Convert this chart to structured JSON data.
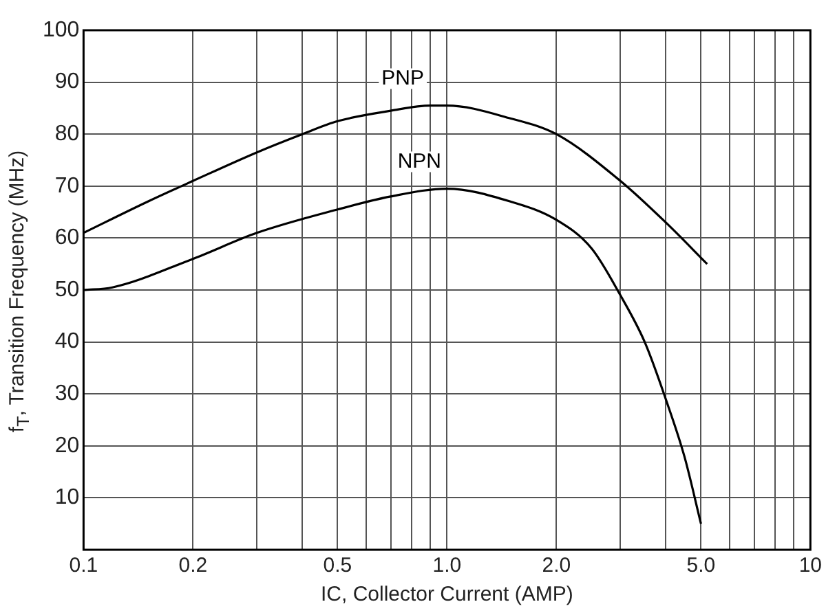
{
  "chart_data": {
    "type": "line",
    "xlabel": "IC, Collector Current (AMP)",
    "ylabel": "f$_{T}$, Transition Frequency (MHz)",
    "log": "x",
    "grid": true,
    "legend": false,
    "marker": "none",
    "line_style": "solid",
    "xlim": [
      0.1,
      10
    ],
    "xticks": [
      0.1,
      0.2,
      {
        "value": 0.3,
        "label": null
      },
      {
        "value": 0.4,
        "label": null
      },
      0.5,
      {
        "value": 0.6,
        "label": null
      },
      {
        "value": 0.7,
        "label": null
      },
      {
        "value": 0.8,
        "label": null
      },
      {
        "value": 0.9,
        "label": null
      },
      {
        "value": 1,
        "label": "1.0"
      },
      {
        "value": 2,
        "label": "2.0"
      },
      {
        "value": 3,
        "label": null
      },
      {
        "value": 4,
        "label": null
      },
      {
        "value": 5,
        "label": "5.0"
      },
      {
        "value": 6,
        "label": null
      },
      {
        "value": 7,
        "label": null
      },
      {
        "value": 8,
        "label": null
      },
      {
        "value": 9,
        "label": null
      },
      10
    ],
    "ylim": [
      0,
      100
    ],
    "yticks": [
      {
        "value": 0,
        "label": null
      },
      10,
      20,
      30,
      40,
      50,
      60,
      70,
      80,
      90,
      100
    ],
    "series": [
      {
        "name": "PNP",
        "color": "#000000",
        "x": [
          0.1,
          0.15,
          0.2,
          0.3,
          0.4,
          0.5,
          0.7,
          0.9,
          1.0,
          1.5,
          2.0,
          3.0,
          4.0,
          5.2
        ],
        "values": [
          61,
          67,
          71,
          76.5,
          80,
          82.5,
          84.5,
          85.5,
          85.5,
          83,
          80,
          71,
          63,
          55
        ]
      },
      {
        "name": "NPN",
        "color": "#000000",
        "x": [
          0.1,
          0.12,
          0.2,
          0.3,
          0.5,
          0.7,
          1.0,
          1.5,
          2.0,
          2.5,
          3.0,
          3.5,
          4.0,
          4.5,
          5.0
        ],
        "values": [
          50,
          50.5,
          56,
          61,
          65.5,
          68,
          69.5,
          67,
          63.5,
          58,
          49,
          40,
          29,
          18,
          5
        ]
      }
    ]
  }
}
